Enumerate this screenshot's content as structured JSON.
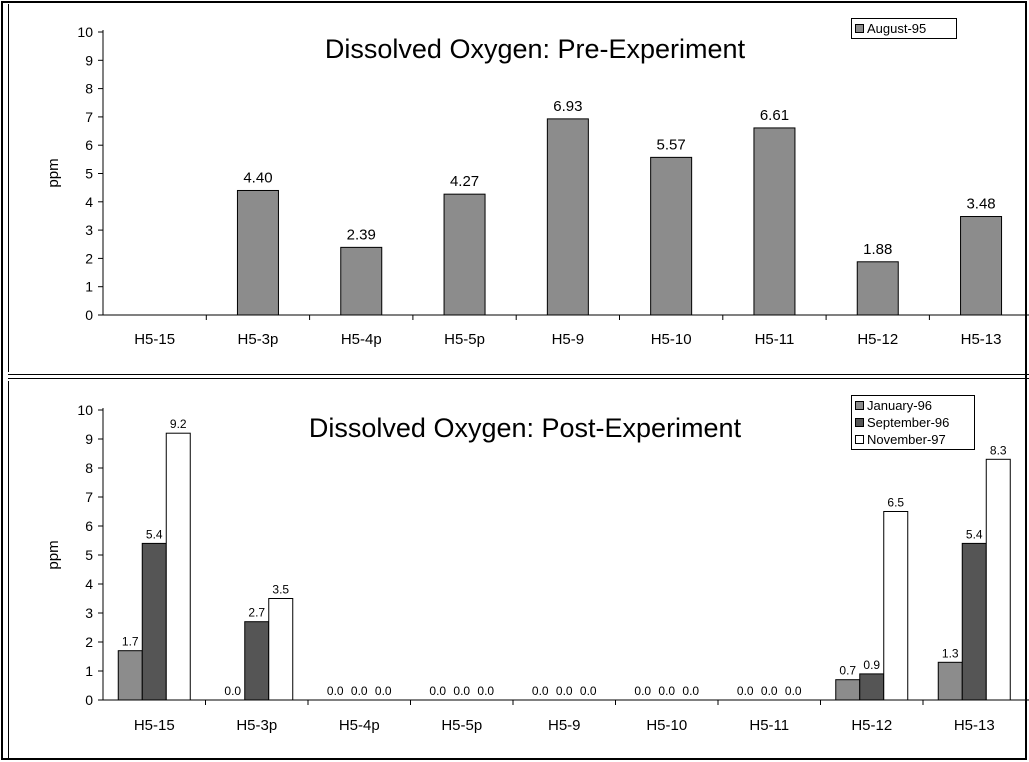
{
  "chart_data": [
    {
      "type": "bar",
      "title": "Dissolved Oxygen: Pre-Experiment",
      "ylabel": "ppm",
      "xlabel": "",
      "ylim": [
        0,
        10
      ],
      "yticks": [
        0,
        1,
        2,
        3,
        4,
        5,
        6,
        7,
        8,
        9,
        10
      ],
      "legend_position": "top-right",
      "grid": false,
      "categories": [
        "H5-15",
        "H5-3p",
        "H5-4p",
        "H5-5p",
        "H5-9",
        "H5-10",
        "H5-11",
        "H5-12",
        "H5-13"
      ],
      "series": [
        {
          "name": "August-95",
          "color": "#8c8c8c",
          "values": [
            null,
            4.4,
            2.39,
            4.27,
            6.93,
            5.57,
            6.61,
            1.88,
            3.48
          ],
          "labels": [
            "",
            "4.40",
            "2.39",
            "4.27",
            "6.93",
            "5.57",
            "6.61",
            "1.88",
            "3.48"
          ]
        }
      ]
    },
    {
      "type": "bar",
      "title": "Dissolved Oxygen: Post-Experiment",
      "ylabel": "ppm",
      "xlabel": "",
      "ylim": [
        0,
        10
      ],
      "yticks": [
        0,
        1,
        2,
        3,
        4,
        5,
        6,
        7,
        8,
        9,
        10
      ],
      "legend_position": "top-right",
      "grid": false,
      "categories": [
        "H5-15",
        "H5-3p",
        "H5-4p",
        "H5-5p",
        "H5-9",
        "H5-10",
        "H5-11",
        "H5-12",
        "H5-13"
      ],
      "series": [
        {
          "name": "January-96",
          "color": "#8c8c8c",
          "values": [
            1.7,
            0.0,
            0.0,
            0.0,
            0.0,
            0.0,
            0.0,
            0.7,
            1.3
          ],
          "labels": [
            "1.7",
            "0.0",
            "0.0",
            "0.0",
            "0.0",
            "0.0",
            "0.0",
            "0.7",
            "1.3"
          ]
        },
        {
          "name": "September-96",
          "color": "#555555",
          "values": [
            5.4,
            2.7,
            0.0,
            0.0,
            0.0,
            0.0,
            0.0,
            0.9,
            5.4
          ],
          "labels": [
            "5.4",
            "2.7",
            "0.0",
            "0.0",
            "0.0",
            "0.0",
            "0.0",
            "0.9",
            "5.4"
          ]
        },
        {
          "name": "November-97",
          "color": "#ffffff",
          "values": [
            9.2,
            3.5,
            0.0,
            0.0,
            0.0,
            0.0,
            0.0,
            6.5,
            8.3
          ],
          "labels": [
            "9.2",
            "3.5",
            "0.0",
            "0.0",
            "0.0",
            "0.0",
            "0.0",
            "6.5",
            "8.3"
          ]
        }
      ]
    }
  ]
}
